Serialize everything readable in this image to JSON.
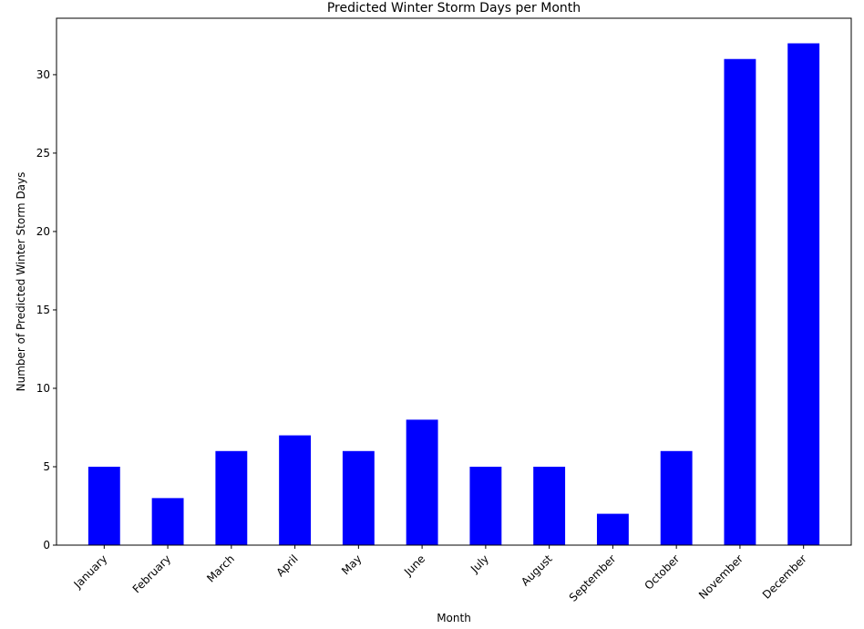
{
  "chart_data": {
    "type": "bar",
    "title": "Predicted Winter Storm Days per Month",
    "xlabel": "Month",
    "ylabel": "Number of Predicted Winter Storm Days",
    "categories": [
      "January",
      "February",
      "March",
      "April",
      "May",
      "June",
      "July",
      "August",
      "September",
      "October",
      "November",
      "December"
    ],
    "values": [
      5,
      3,
      6,
      7,
      6,
      8,
      5,
      5,
      2,
      6,
      31,
      32
    ],
    "ylim": [
      0,
      33.6
    ],
    "yticks": [
      "0",
      "5",
      "10",
      "15",
      "20",
      "25",
      "30"
    ],
    "bar_color": "#0000ff",
    "grid": false
  }
}
